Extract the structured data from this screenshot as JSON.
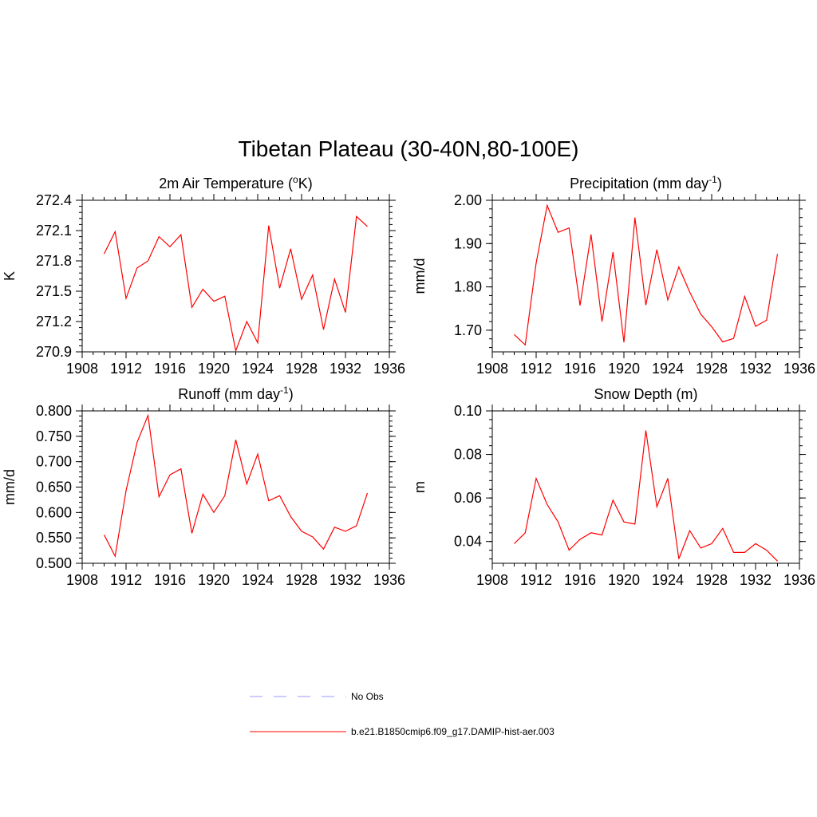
{
  "figure": {
    "title": "Tibetan Plateau (30-40N,80-100E)"
  },
  "legend": {
    "items": [
      {
        "label": "No Obs",
        "color": "#9999ff",
        "style": "dashed"
      },
      {
        "label": "b.e21.B1850cmip6.f09_g17.DAMIP-hist-aer.003",
        "color": "#ff0000",
        "style": "solid"
      }
    ]
  },
  "chart_data": [
    {
      "type": "line",
      "title_parts": [
        "2m Air Temperature (",
        "o",
        "K)"
      ],
      "ylabel": "K",
      "xlim": [
        1908,
        1936
      ],
      "xticks": [
        "1908",
        "1912",
        "1916",
        "1920",
        "1924",
        "1928",
        "1932",
        "1936"
      ],
      "ylim": [
        270.9,
        272.4
      ],
      "yticks": [
        "270.9",
        "271.2",
        "271.5",
        "271.8",
        "272.1",
        "272.4"
      ],
      "x": [
        1910,
        1911,
        1912,
        1913,
        1914,
        1915,
        1916,
        1917,
        1918,
        1919,
        1920,
        1921,
        1922,
        1923,
        1924,
        1925,
        1926,
        1927,
        1928,
        1929,
        1930,
        1931,
        1932,
        1933,
        1934
      ],
      "series": [
        {
          "color": "#ff0000",
          "values": [
            271.87,
            272.09,
            271.43,
            271.73,
            271.8,
            272.04,
            271.94,
            272.06,
            271.34,
            271.52,
            271.4,
            271.45,
            270.91,
            271.2,
            270.99,
            272.15,
            271.53,
            271.92,
            271.42,
            271.66,
            271.12,
            271.62,
            271.29,
            272.24,
            272.14
          ]
        }
      ]
    },
    {
      "type": "line",
      "title_parts": [
        "Precipitation (mm day",
        "-1",
        ")"
      ],
      "ylabel": "mm/d",
      "xlim": [
        1908,
        1936
      ],
      "xticks": [
        "1908",
        "1912",
        "1916",
        "1920",
        "1924",
        "1928",
        "1932",
        "1936"
      ],
      "ylim": [
        1.65,
        2.0
      ],
      "yticks": [
        "1.70",
        "1.80",
        "1.90",
        "2.00"
      ],
      "x": [
        1910,
        1911,
        1912,
        1913,
        1914,
        1915,
        1916,
        1917,
        1918,
        1919,
        1920,
        1921,
        1922,
        1923,
        1924,
        1925,
        1926,
        1927,
        1928,
        1929,
        1930,
        1931,
        1932,
        1933,
        1934
      ],
      "series": [
        {
          "color": "#ff0000",
          "values": [
            1.69,
            1.666,
            1.855,
            1.988,
            1.926,
            1.936,
            1.757,
            1.921,
            1.72,
            1.88,
            1.672,
            1.96,
            1.758,
            1.886,
            1.77,
            1.846,
            1.788,
            1.737,
            1.708,
            1.673,
            1.681,
            1.778,
            1.709,
            1.723,
            1.876
          ]
        }
      ]
    },
    {
      "type": "line",
      "title_parts": [
        "Runoff (mm day",
        "-1",
        ")"
      ],
      "ylabel": "mm/d",
      "xlim": [
        1908,
        1936
      ],
      "xticks": [
        "1908",
        "1912",
        "1916",
        "1920",
        "1924",
        "1928",
        "1932",
        "1936"
      ],
      "ylim": [
        0.5,
        0.8
      ],
      "yticks": [
        "0.500",
        "0.550",
        "0.600",
        "0.650",
        "0.700",
        "0.750",
        "0.800"
      ],
      "x": [
        1910,
        1911,
        1912,
        1913,
        1914,
        1915,
        1916,
        1917,
        1918,
        1919,
        1920,
        1921,
        1922,
        1923,
        1924,
        1925,
        1926,
        1927,
        1928,
        1929,
        1930,
        1931,
        1932,
        1933,
        1934
      ],
      "series": [
        {
          "color": "#ff0000",
          "values": [
            0.556,
            0.514,
            0.643,
            0.738,
            0.791,
            0.631,
            0.674,
            0.686,
            0.559,
            0.636,
            0.6,
            0.633,
            0.743,
            0.656,
            0.715,
            0.623,
            0.633,
            0.592,
            0.563,
            0.552,
            0.528,
            0.571,
            0.563,
            0.574,
            0.638
          ]
        }
      ]
    },
    {
      "type": "line",
      "title_parts": [
        "Snow Depth (m)"
      ],
      "ylabel": "m",
      "xlim": [
        1908,
        1936
      ],
      "xticks": [
        "1908",
        "1912",
        "1916",
        "1920",
        "1924",
        "1928",
        "1932",
        "1936"
      ],
      "ylim": [
        0.03,
        0.1
      ],
      "yticks": [
        "0.04",
        "0.06",
        "0.08",
        "0.10"
      ],
      "x": [
        1910,
        1911,
        1912,
        1913,
        1914,
        1915,
        1916,
        1917,
        1918,
        1919,
        1920,
        1921,
        1922,
        1923,
        1924,
        1925,
        1926,
        1927,
        1928,
        1929,
        1930,
        1931,
        1932,
        1933,
        1934
      ],
      "series": [
        {
          "color": "#ff0000",
          "values": [
            0.039,
            0.044,
            0.069,
            0.057,
            0.049,
            0.036,
            0.041,
            0.044,
            0.043,
            0.059,
            0.049,
            0.048,
            0.091,
            0.056,
            0.069,
            0.032,
            0.045,
            0.037,
            0.039,
            0.046,
            0.035,
            0.035,
            0.039,
            0.036,
            0.031
          ]
        }
      ]
    }
  ]
}
